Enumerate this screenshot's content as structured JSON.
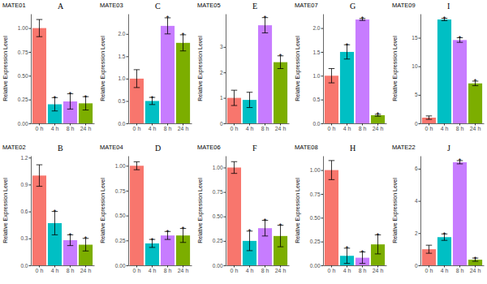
{
  "chart_data": [
    {
      "type": "bar",
      "title": "MATE01",
      "label": "A",
      "y_label": "Relative Expression Level",
      "categories": [
        "0 h",
        "4 h",
        "8 h",
        "24 h"
      ],
      "values": [
        1.0,
        0.2,
        0.23,
        0.21
      ],
      "errors": [
        0.09,
        0.07,
        0.08,
        0.07
      ],
      "colors": [
        "#F8766D",
        "#00BFC4",
        "#C77CFF",
        "#7CAE00"
      ],
      "ylim": [
        0,
        1.15
      ],
      "yticks": [
        {
          "value": 0,
          "label": "0.00"
        },
        0.25,
        {
          "value": 0.5,
          "label": "0.50"
        },
        0.75,
        {
          "value": 1,
          "label": "1.00"
        }
      ],
      "annotations": [
        {
          "x": "4 h",
          "text": "*"
        },
        {
          "x": "8 h",
          "text": "*"
        },
        {
          "x": "24 h",
          "text": "*"
        }
      ]
    },
    {
      "type": "bar",
      "title": "MATE03",
      "label": "C",
      "y_label": "Relative Expression Level",
      "categories": [
        "0 h",
        "4 h",
        "8 h",
        "24 h"
      ],
      "values": [
        1.0,
        0.5,
        2.18,
        1.8
      ],
      "errors": [
        0.2,
        0.08,
        0.18,
        0.18
      ],
      "colors": [
        "#F8766D",
        "#00BFC4",
        "#C77CFF",
        "#7CAE00"
      ],
      "ylim": [
        0,
        2.45
      ],
      "yticks": [
        {
          "value": 0,
          "label": "0.0"
        },
        0.5,
        {
          "value": 1,
          "label": "1.0"
        },
        1.5,
        {
          "value": 2,
          "label": "2.0"
        }
      ],
      "annotations": [
        {
          "x": "4 h",
          "text": "*"
        },
        {
          "x": "8 h",
          "text": "*"
        },
        {
          "x": "24 h",
          "text": "*"
        }
      ]
    },
    {
      "type": "bar",
      "title": "MATE05",
      "label": "E",
      "y_label": "Relative Expression Level",
      "categories": [
        "0 h",
        "4 h",
        "8 h",
        "24 h"
      ],
      "values": [
        1.0,
        0.92,
        3.85,
        2.4
      ],
      "errors": [
        0.3,
        0.3,
        0.3,
        0.25
      ],
      "colors": [
        "#F8766D",
        "#00BFC4",
        "#C77CFF",
        "#7CAE00"
      ],
      "ylim": [
        0,
        4.3
      ],
      "yticks": [
        0,
        1,
        2,
        3
      ],
      "annotations": [
        {
          "x": "8 h",
          "text": "*"
        },
        {
          "x": "24 h",
          "text": "*"
        }
      ]
    },
    {
      "type": "bar",
      "title": "MATE07",
      "label": "G",
      "y_label": "Relative Expression Level",
      "categories": [
        "0 h",
        "4 h",
        "8 h",
        "24 h"
      ],
      "values": [
        1.0,
        1.5,
        2.18,
        0.17
      ],
      "errors": [
        0.15,
        0.15,
        0.02,
        0.02
      ],
      "colors": [
        "#F8766D",
        "#00BFC4",
        "#C77CFF",
        "#7CAE00"
      ],
      "ylim": [
        0,
        2.3
      ],
      "yticks": [
        {
          "value": 0,
          "label": "0.0"
        },
        0.5,
        {
          "value": 1,
          "label": "1.0"
        },
        1.5,
        {
          "value": 2,
          "label": "2.0"
        }
      ],
      "annotations": [
        {
          "x": "4 h",
          "text": "*"
        },
        {
          "x": "8 h",
          "text": "*"
        },
        {
          "x": "24 h",
          "text": "*"
        }
      ]
    },
    {
      "type": "bar",
      "title": "MATE09",
      "label": "I",
      "y_label": "Relative Expression Level",
      "categories": [
        "0 h",
        "4 h",
        "8 h",
        "24 h"
      ],
      "values": [
        1.0,
        18.2,
        14.6,
        7.0
      ],
      "errors": [
        0.3,
        0.2,
        0.4,
        0.4
      ],
      "colors": [
        "#F8766D",
        "#00BFC4",
        "#C77CFF",
        "#7CAE00"
      ],
      "ylim": [
        0,
        19.2
      ],
      "yticks": [
        0,
        5,
        10,
        15
      ],
      "annotations": [
        {
          "x": "4 h",
          "text": "*"
        },
        {
          "x": "8 h",
          "text": "*"
        },
        {
          "x": "24 h",
          "text": "*"
        }
      ]
    },
    {
      "type": "bar",
      "title": "MATE02",
      "label": "B",
      "y_label": "Relative Expression Level",
      "categories": [
        "0 h",
        "4 h",
        "8 h",
        "24 h"
      ],
      "values": [
        1.0,
        0.47,
        0.28,
        0.23
      ],
      "errors": [
        0.12,
        0.13,
        0.06,
        0.07
      ],
      "colors": [
        "#F8766D",
        "#00BFC4",
        "#C77CFF",
        "#7CAE00"
      ],
      "ylim": [
        0,
        1.22
      ],
      "yticks": [
        {
          "value": 0,
          "label": "0.0"
        },
        0.3,
        0.6,
        0.9,
        1.2
      ],
      "annotations": [
        {
          "x": "4 h",
          "text": "*"
        },
        {
          "x": "8 h",
          "text": "*"
        },
        {
          "x": "24 h",
          "text": "*"
        }
      ]
    },
    {
      "type": "bar",
      "title": "MATE04",
      "label": "D",
      "y_label": "Relative Expression Level",
      "categories": [
        "0 h",
        "4 h",
        "8 h",
        "24 h"
      ],
      "values": [
        1.0,
        0.22,
        0.3,
        0.3
      ],
      "errors": [
        0.04,
        0.04,
        0.04,
        0.07
      ],
      "colors": [
        "#F8766D",
        "#00BFC4",
        "#C77CFF",
        "#7CAE00"
      ],
      "ylim": [
        0,
        1.1
      ],
      "yticks": [
        {
          "value": 0,
          "label": "0.00"
        },
        0.25,
        {
          "value": 0.5,
          "label": "0.50"
        },
        0.75,
        {
          "value": 1,
          "label": "1.00"
        }
      ],
      "annotations": [
        {
          "x": "4 h",
          "text": "*"
        },
        {
          "x": "8 h",
          "text": "*"
        },
        {
          "x": "24 h",
          "text": "*"
        }
      ]
    },
    {
      "type": "bar",
      "title": "MATE06",
      "label": "F",
      "y_label": "Relative Expression Level",
      "categories": [
        "0 h",
        "4 h",
        "8 h",
        "24 h"
      ],
      "values": [
        1.0,
        0.25,
        0.38,
        0.3
      ],
      "errors": [
        0.06,
        0.1,
        0.08,
        0.11
      ],
      "colors": [
        "#F8766D",
        "#00BFC4",
        "#C77CFF",
        "#7CAE00"
      ],
      "ylim": [
        0,
        1.12
      ],
      "yticks": [
        {
          "value": 0,
          "label": "0.00"
        },
        0.25,
        {
          "value": 0.5,
          "label": "0.50"
        },
        0.75,
        {
          "value": 1,
          "label": "1.00"
        }
      ],
      "annotations": [
        {
          "x": "4 h",
          "text": "*"
        },
        {
          "x": "8 h",
          "text": "*"
        },
        {
          "x": "24 h",
          "text": "*"
        }
      ]
    },
    {
      "type": "bar",
      "title": "MATE08",
      "label": "H",
      "y_label": "Relative Expression Level",
      "categories": [
        "0 h",
        "4 h",
        "8 h",
        "24 h"
      ],
      "values": [
        1.0,
        0.1,
        0.08,
        0.22
      ],
      "errors": [
        0.1,
        0.08,
        0.06,
        0.1
      ],
      "colors": [
        "#F8766D",
        "#00BFC4",
        "#C77CFF",
        "#7CAE00"
      ],
      "ylim": [
        0,
        1.15
      ],
      "yticks": [
        {
          "value": 0,
          "label": "0.00"
        },
        0.25,
        {
          "value": 0.5,
          "label": "0.50"
        },
        0.75,
        {
          "value": 1,
          "label": "1.00"
        }
      ],
      "annotations": [
        {
          "x": "4 h",
          "text": "*"
        },
        {
          "x": "8 h",
          "text": "*"
        },
        {
          "x": "24 h",
          "text": "*"
        }
      ]
    },
    {
      "type": "bar",
      "title": "MATE22",
      "label": "J",
      "y_label": "Relative Expression Level",
      "categories": [
        "0 h",
        "4 h",
        "8 h",
        "24 h"
      ],
      "values": [
        1.0,
        1.75,
        6.4,
        0.35
      ],
      "errors": [
        0.25,
        0.2,
        0.1,
        0.1
      ],
      "colors": [
        "#F8766D",
        "#00BFC4",
        "#C77CFF",
        "#7CAE00"
      ],
      "ylim": [
        0,
        6.8
      ],
      "yticks": [
        0,
        2,
        4,
        6
      ],
      "annotations": [
        {
          "x": "4 h",
          "text": "*"
        },
        {
          "x": "8 h",
          "text": "*"
        },
        {
          "x": "24 h",
          "text": "*"
        }
      ]
    }
  ]
}
